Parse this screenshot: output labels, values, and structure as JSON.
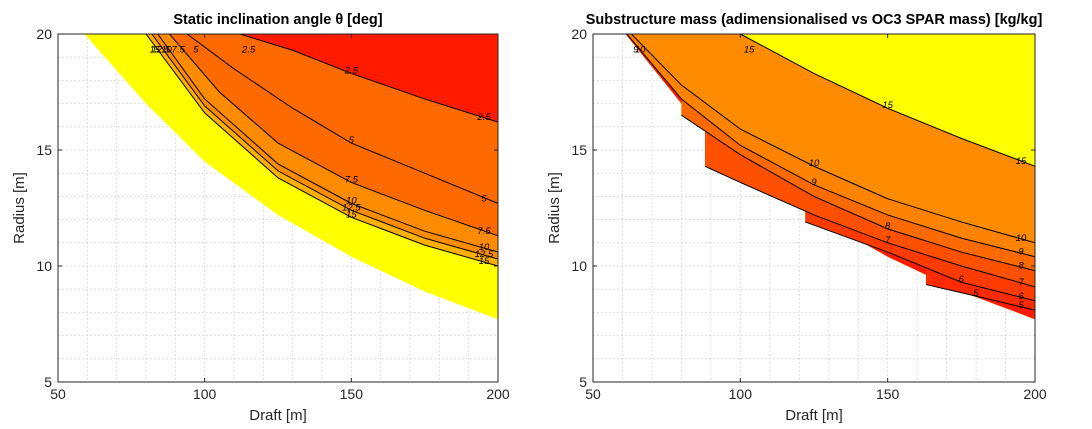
{
  "chart_data": [
    {
      "type": "contour",
      "title": "Static inclination angle θ [deg]",
      "xlabel": "Draft [m]",
      "ylabel": "Radius [m]",
      "xlim": [
        50,
        200
      ],
      "ylim": [
        5,
        20
      ],
      "xticks": [
        "50",
        "100",
        "150",
        "200"
      ],
      "yticks": [
        "5",
        "10",
        "15",
        "20"
      ],
      "grid": true,
      "colormap": "autumn",
      "fill_colors": [
        "#ff1a00",
        "#ff6a00",
        "#ff8c00",
        "#ffb000",
        "#ffff00"
      ],
      "feasible_boundary": [
        [
          59,
          20
        ],
        [
          80,
          17
        ],
        [
          100,
          14.5
        ],
        [
          125,
          12.2
        ],
        [
          150,
          10.4
        ],
        [
          175,
          8.9
        ],
        [
          200,
          7.7
        ]
      ],
      "levels": [
        2.5,
        5,
        7.5,
        10,
        12.5,
        15
      ],
      "level_labels": [
        "2.5",
        "5",
        "7.5",
        "10",
        "12.5",
        "15"
      ],
      "contours": [
        {
          "level": 2.5,
          "points": [
            [
              112,
              20
            ],
            [
              130,
              19.3
            ],
            [
              150,
              18.3
            ],
            [
              175,
              17.2
            ],
            [
              200,
              16.2
            ]
          ]
        },
        {
          "level": 5,
          "points": [
            [
              94,
              20
            ],
            [
              110,
              18.5
            ],
            [
              130,
              16.8
            ],
            [
              150,
              15.3
            ],
            [
              175,
              14
            ],
            [
              200,
              12.7
            ]
          ]
        },
        {
          "level": 7.5,
          "points": [
            [
              88,
              20
            ],
            [
              105,
              17.5
            ],
            [
              125,
              15.3
            ],
            [
              150,
              13.6
            ],
            [
              175,
              12.4
            ],
            [
              200,
              11.3
            ]
          ]
        },
        {
          "level": 10,
          "points": [
            [
              84,
              20
            ],
            [
              100,
              17.2
            ],
            [
              125,
              14.4
            ],
            [
              150,
              12.7
            ],
            [
              175,
              11.5
            ],
            [
              200,
              10.6
            ]
          ]
        },
        {
          "level": 12.5,
          "points": [
            [
              82,
              20
            ],
            [
              100,
              16.9
            ],
            [
              125,
              14.1
            ],
            [
              150,
              12.4
            ],
            [
              175,
              11.2
            ],
            [
              200,
              10.3
            ]
          ]
        },
        {
          "level": 15,
          "points": [
            [
              80,
              20
            ],
            [
              100,
              16.6
            ],
            [
              125,
              13.8
            ],
            [
              150,
              12.1
            ],
            [
              175,
              10.9
            ],
            [
              200,
              10.0
            ]
          ]
        }
      ]
    },
    {
      "type": "contour",
      "title": "Substructure mass (adimensionalised vs OC3 SPAR mass) [kg/kg]",
      "xlabel": "Draft [m]",
      "ylabel": "Radius [m]",
      "xlim": [
        50,
        200
      ],
      "ylim": [
        5,
        20
      ],
      "xticks": [
        "50",
        "100",
        "150",
        "200"
      ],
      "yticks": [
        "5",
        "10",
        "15",
        "20"
      ],
      "grid": true,
      "colormap": "autumn",
      "fill_colors": [
        "#ff0000",
        "#ff3300",
        "#ff5500",
        "#ff7000",
        "#ff8a00",
        "#ffff00"
      ],
      "feasible_boundary": [
        [
          61,
          20
        ],
        [
          80,
          17
        ],
        [
          100,
          14.5
        ],
        [
          125,
          12.2
        ],
        [
          150,
          10.4
        ],
        [
          175,
          8.9
        ],
        [
          200,
          7.7
        ]
      ],
      "levels": [
        5,
        6,
        7,
        8,
        9,
        10,
        15
      ],
      "level_labels": [
        "5",
        "6",
        "7",
        "8",
        "9",
        "10",
        "15"
      ],
      "contours": [
        {
          "level": 15,
          "points": [
            [
              100,
              20
            ],
            [
              125,
              18.3
            ],
            [
              150,
              16.8
            ],
            [
              175,
              15.5
            ],
            [
              200,
              14.3
            ]
          ]
        },
        {
          "level": 10,
          "points": [
            [
              63,
              20
            ],
            [
              80,
              17.8
            ],
            [
              100,
              15.9
            ],
            [
              125,
              14.3
            ],
            [
              150,
              12.9
            ],
            [
              175,
              11.9
            ],
            [
              200,
              11
            ]
          ]
        },
        {
          "level": 9,
          "points": [
            [
              61.5,
              20
            ],
            [
              80,
              17.2
            ],
            [
              100,
              15.2
            ],
            [
              125,
              13.5
            ],
            [
              150,
              12.2
            ],
            [
              175,
              11.2
            ],
            [
              200,
              10.4
            ]
          ]
        },
        {
          "level": 8,
          "points": [
            [
              80,
              16.5
            ],
            [
              100,
              14.8
            ],
            [
              125,
              13
            ],
            [
              150,
              11.6
            ],
            [
              175,
              10.6
            ],
            [
              200,
              9.8
            ]
          ]
        },
        {
          "level": 7,
          "points": [
            [
              88,
              14.3
            ],
            [
              100,
              13.6
            ],
            [
              125,
              12.2
            ],
            [
              150,
              11
            ],
            [
              175,
              10
            ],
            [
              200,
              9.1
            ]
          ]
        },
        {
          "level": 6,
          "points": [
            [
              122,
              11.9
            ],
            [
              150,
              10.6
            ],
            [
              175,
              9.3
            ],
            [
              200,
              8.5
            ]
          ]
        },
        {
          "level": 5,
          "points": [
            [
              163,
              9.2
            ],
            [
              180,
              8.7
            ],
            [
              200,
              8.1
            ]
          ]
        }
      ]
    }
  ]
}
